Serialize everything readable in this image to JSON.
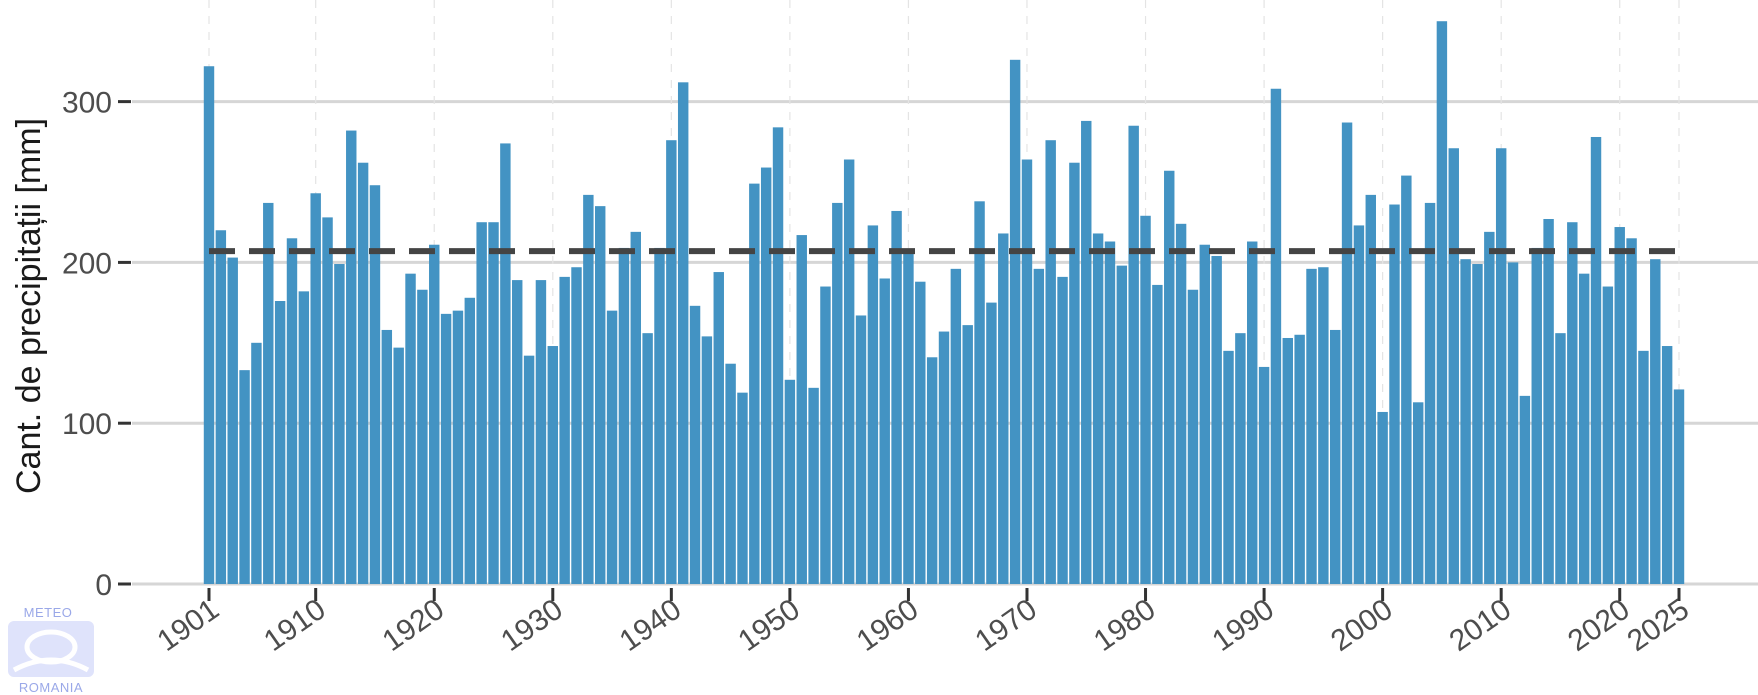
{
  "chart_data": {
    "type": "bar",
    "title": "",
    "xlabel": "",
    "ylabel": "Cant. de precipitații [mm]",
    "x_start": 1901,
    "x_end": 2025,
    "x_ticks": [
      1901,
      1910,
      1920,
      1930,
      1940,
      1950,
      1960,
      1970,
      1980,
      1990,
      2000,
      2010,
      2020,
      2025
    ],
    "y_ticks": [
      0,
      100,
      200,
      300
    ],
    "ylim": [
      0,
      352
    ],
    "grid": true,
    "bar_color": "#4393c3",
    "mean_line": {
      "value": 207,
      "style": "dashed",
      "color": "#444444"
    },
    "values": [
      322,
      220,
      203,
      133,
      150,
      237,
      176,
      215,
      182,
      243,
      228,
      199,
      282,
      262,
      248,
      158,
      147,
      193,
      183,
      211,
      168,
      170,
      178,
      225,
      225,
      274,
      189,
      142,
      189,
      148,
      191,
      197,
      242,
      235,
      170,
      209,
      219,
      156,
      209,
      276,
      312,
      173,
      154,
      194,
      137,
      119,
      249,
      259,
      284,
      127,
      217,
      122,
      185,
      237,
      264,
      167,
      223,
      190,
      232,
      208,
      188,
      141,
      157,
      196,
      161,
      238,
      175,
      218,
      326,
      264,
      196,
      276,
      191,
      262,
      288,
      218,
      213,
      198,
      285,
      229,
      186,
      257,
      224,
      183,
      211,
      204,
      145,
      156,
      213,
      135,
      308,
      153,
      155,
      196,
      197,
      158,
      287,
      223,
      242,
      107,
      236,
      254,
      113,
      237,
      350,
      271,
      202,
      199,
      219,
      271,
      200,
      117,
      209,
      227,
      156,
      225,
      193,
      278,
      185,
      222,
      215,
      145,
      202,
      148,
      121
    ]
  },
  "logo": {
    "top": "METEO",
    "bottom": "ROMANIA"
  }
}
